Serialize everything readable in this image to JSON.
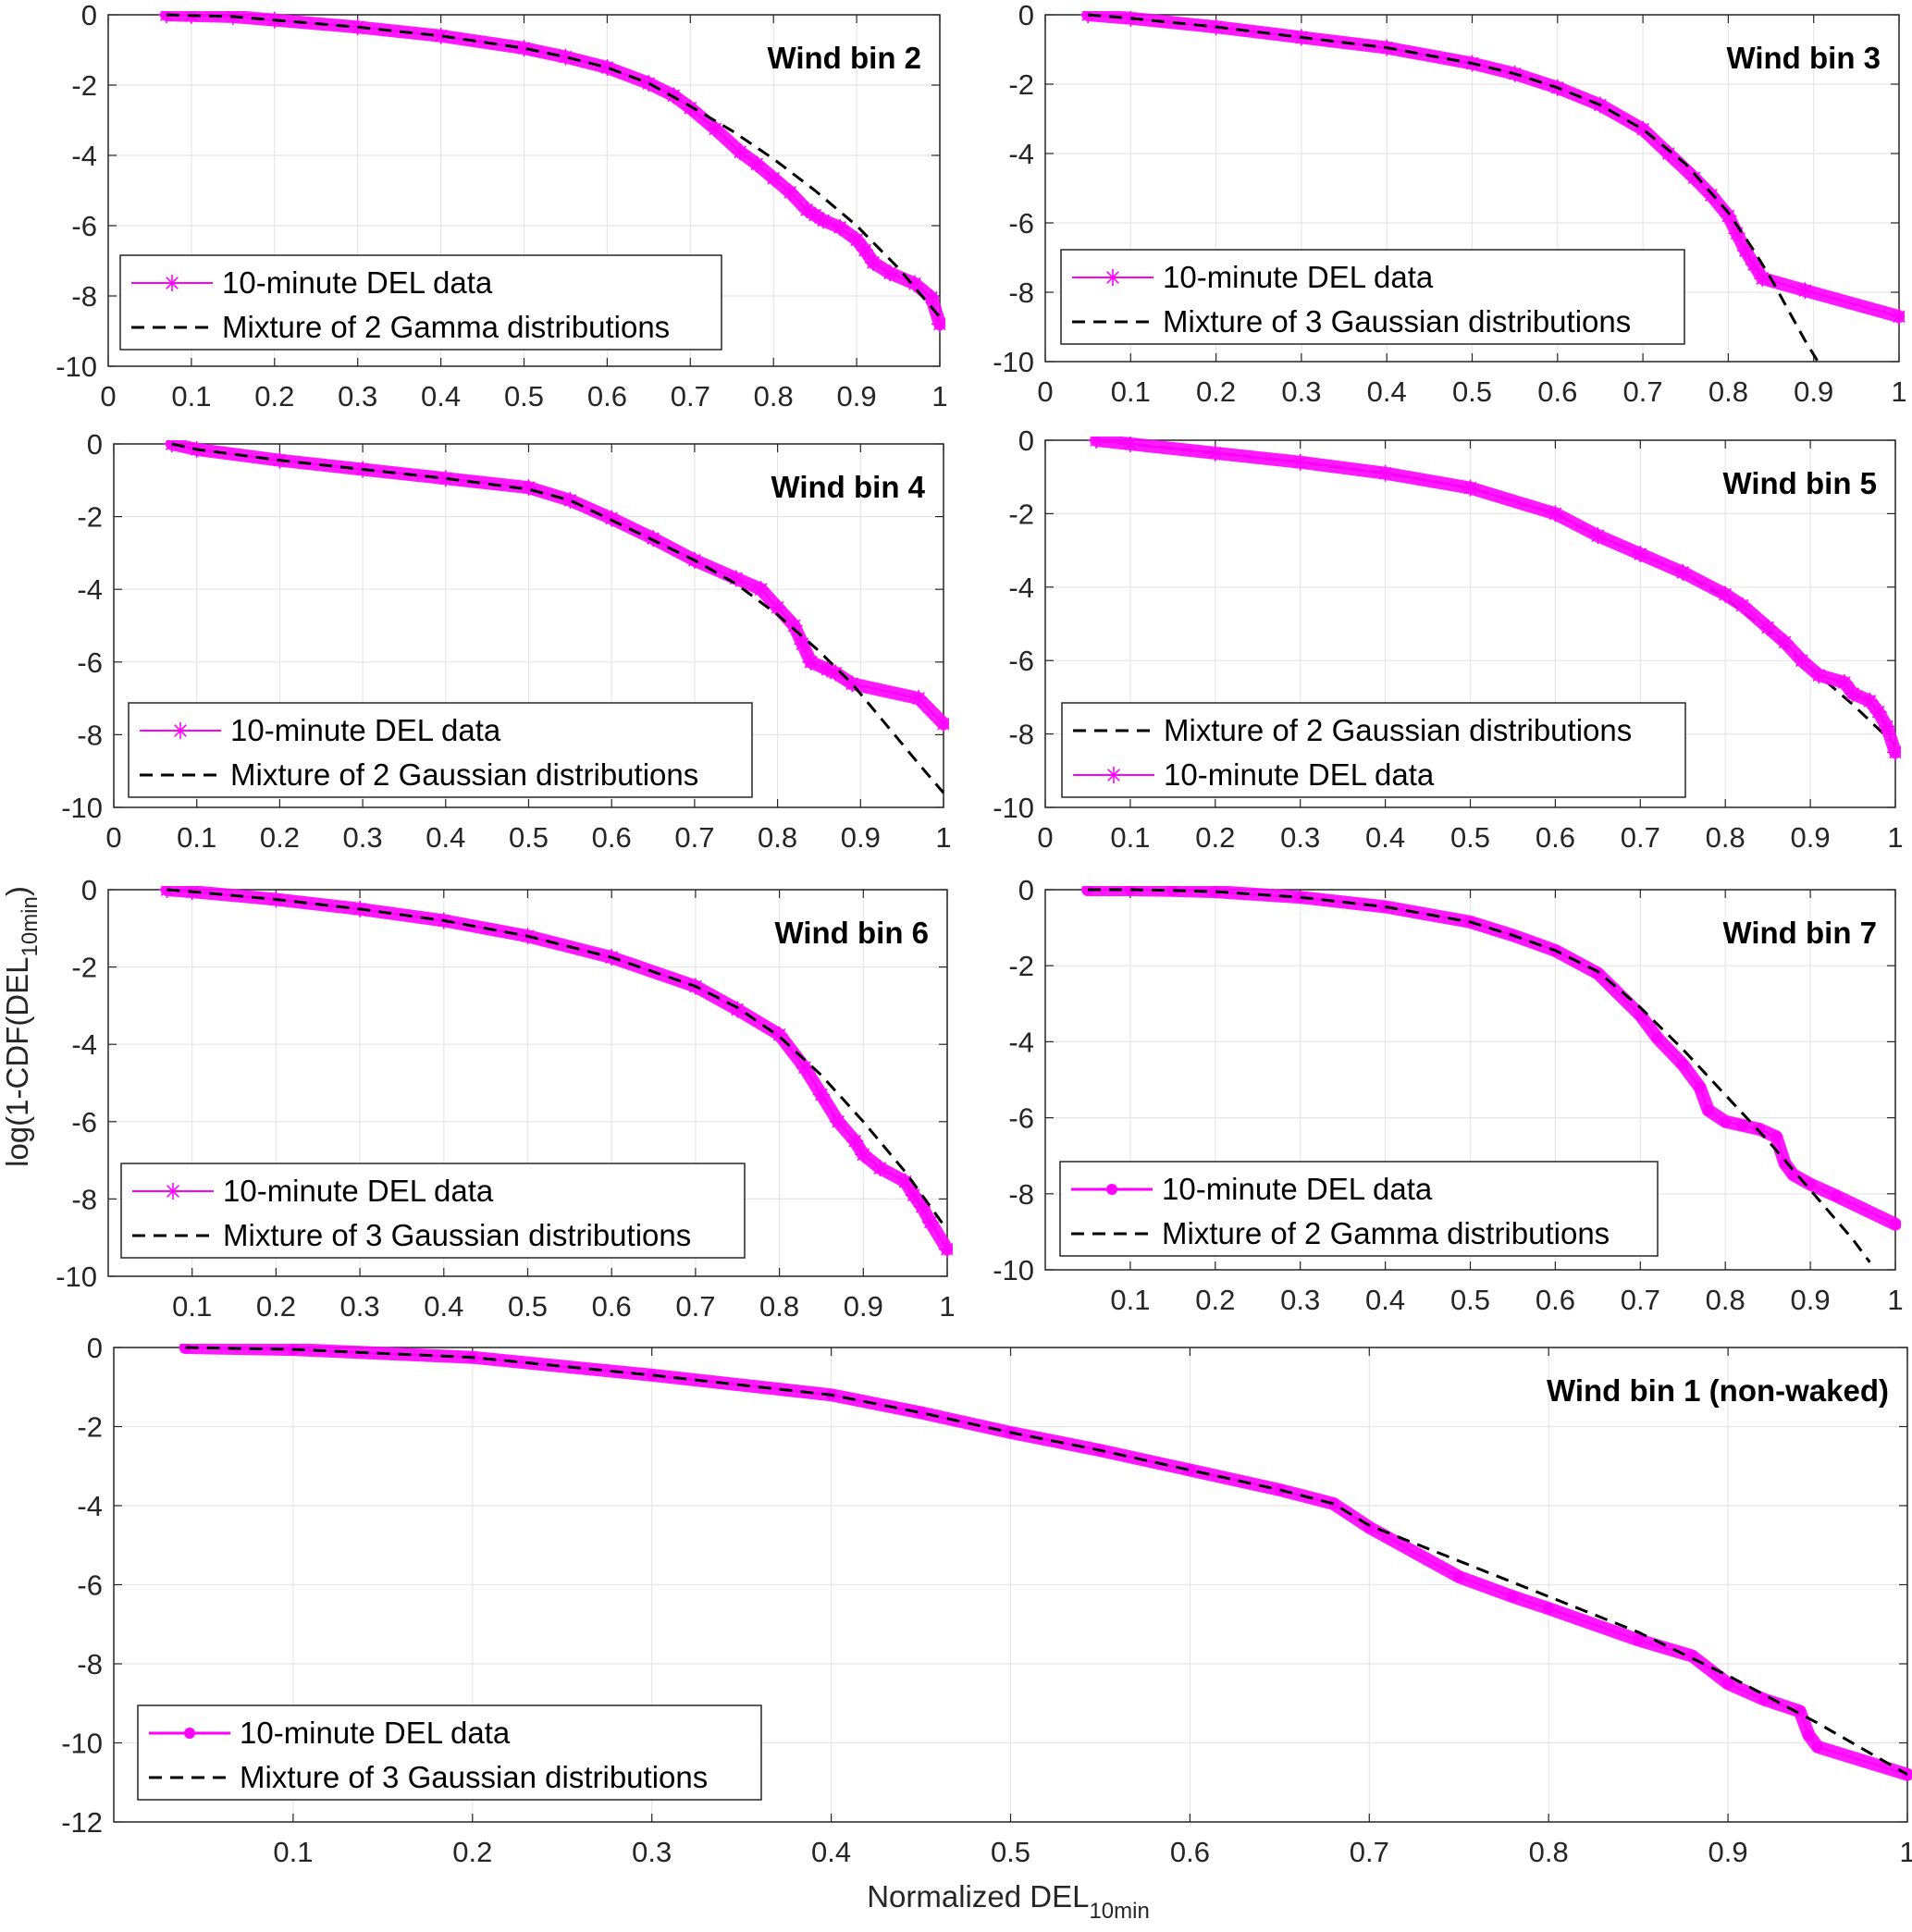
{
  "figure": {
    "ylabel_main": "log(1-CDF(DEL",
    "ylabel_sub": "10min",
    "ylabel_close": ")",
    "xlabel_main": "Normalized DEL",
    "xlabel_sub": "10min",
    "colors": {
      "data": "#FF00FF",
      "fit": "#000000",
      "grid": "#E6E6E6",
      "axis": "#262626"
    }
  },
  "chart_data": [
    {
      "id": "bin2",
      "type": "line",
      "title": "Wind bin 2",
      "xlim": [
        0,
        1
      ],
      "ylim": [
        -10,
        0
      ],
      "xticks": [
        0,
        0.1,
        0.2,
        0.3,
        0.4,
        0.5,
        0.6,
        0.7,
        0.8,
        0.9,
        1
      ],
      "xtick_labels": [
        "0",
        "0.1",
        "0.2",
        "0.3",
        "0.4",
        "0.5",
        "0.6",
        "0.7",
        "0.8",
        "0.9",
        "1"
      ],
      "yticks": [
        0,
        -2,
        -4,
        -6,
        -8,
        -10
      ],
      "ytick_labels": [
        "0",
        "-2",
        "-4",
        "-6",
        "-8",
        "-10"
      ],
      "grid": true,
      "legend_position": "bottom-left",
      "series": [
        {
          "name": "10-minute DEL data",
          "style": "data",
          "marker": "asterisk",
          "x": [
            0.07,
            0.1,
            0.15,
            0.2,
            0.3,
            0.4,
            0.5,
            0.55,
            0.6,
            0.65,
            0.68,
            0.7,
            0.73,
            0.76,
            0.78,
            0.8,
            0.82,
            0.84,
            0.85,
            0.86,
            0.88,
            0.9,
            0.91,
            0.92,
            0.94,
            0.97,
            0.99,
            1.0
          ],
          "y": [
            0,
            -0.02,
            -0.05,
            -0.15,
            -0.35,
            -0.6,
            -0.95,
            -1.2,
            -1.5,
            -1.95,
            -2.3,
            -2.65,
            -3.25,
            -3.9,
            -4.25,
            -4.65,
            -5.05,
            -5.55,
            -5.7,
            -5.85,
            -6.05,
            -6.4,
            -6.7,
            -7.05,
            -7.35,
            -7.65,
            -8.05,
            -8.8
          ]
        },
        {
          "name": "Mixture of 2 Gamma distributions",
          "style": "fit",
          "marker": "none",
          "x": [
            0.07,
            0.1,
            0.15,
            0.2,
            0.3,
            0.4,
            0.5,
            0.55,
            0.6,
            0.65,
            0.7,
            0.75,
            0.8,
            0.85,
            0.9,
            0.95,
            1.0
          ],
          "y": [
            0,
            -0.02,
            -0.05,
            -0.15,
            -0.35,
            -0.6,
            -0.95,
            -1.2,
            -1.5,
            -1.95,
            -2.6,
            -3.3,
            -4.1,
            -5.0,
            -6.0,
            -7.2,
            -8.6
          ]
        }
      ]
    },
    {
      "id": "bin3",
      "type": "line",
      "title": "Wind bin 3",
      "xlim": [
        0,
        1
      ],
      "ylim": [
        -10,
        0
      ],
      "xticks": [
        0,
        0.1,
        0.2,
        0.3,
        0.4,
        0.5,
        0.6,
        0.7,
        0.8,
        0.9,
        1
      ],
      "xtick_labels": [
        "0",
        "0.1",
        "0.2",
        "0.3",
        "0.4",
        "0.5",
        "0.6",
        "0.7",
        "0.8",
        "0.9",
        "1"
      ],
      "yticks": [
        0,
        -2,
        -4,
        -6,
        -8,
        -10
      ],
      "ytick_labels": [
        "0",
        "-2",
        "-4",
        "-6",
        "-8",
        "-10"
      ],
      "grid": true,
      "legend_position": "bottom-left",
      "series": [
        {
          "name": "10-minute DEL data",
          "style": "data",
          "marker": "asterisk",
          "x": [
            0.05,
            0.1,
            0.2,
            0.3,
            0.4,
            0.5,
            0.55,
            0.6,
            0.65,
            0.7,
            0.73,
            0.76,
            0.78,
            0.8,
            0.81,
            0.82,
            0.83,
            0.84,
            0.89,
            1.0
          ],
          "y": [
            0,
            -0.1,
            -0.35,
            -0.65,
            -0.95,
            -1.4,
            -1.7,
            -2.1,
            -2.6,
            -3.3,
            -4.0,
            -4.7,
            -5.2,
            -5.8,
            -6.3,
            -6.8,
            -7.2,
            -7.6,
            -7.95,
            -8.7
          ]
        },
        {
          "name": "Mixture of 3 Gaussian distributions",
          "style": "fit",
          "marker": "none",
          "x": [
            0.05,
            0.1,
            0.2,
            0.3,
            0.4,
            0.5,
            0.55,
            0.6,
            0.65,
            0.7,
            0.75,
            0.8,
            0.83,
            0.85,
            0.87,
            0.89,
            0.905
          ],
          "y": [
            0,
            -0.1,
            -0.35,
            -0.65,
            -0.95,
            -1.4,
            -1.7,
            -2.1,
            -2.6,
            -3.3,
            -4.3,
            -5.7,
            -6.8,
            -7.6,
            -8.5,
            -9.4,
            -10
          ]
        }
      ]
    },
    {
      "id": "bin4",
      "type": "line",
      "title": "Wind bin 4",
      "xlim": [
        0,
        1
      ],
      "ylim": [
        -10,
        0
      ],
      "xticks": [
        0,
        0.1,
        0.2,
        0.3,
        0.4,
        0.5,
        0.6,
        0.7,
        0.8,
        0.9,
        1
      ],
      "xtick_labels": [
        "0",
        "0.1",
        "0.2",
        "0.3",
        "0.4",
        "0.5",
        "0.6",
        "0.7",
        "0.8",
        "0.9",
        "1"
      ],
      "yticks": [
        0,
        -2,
        -4,
        -6,
        -8,
        -10
      ],
      "ytick_labels": [
        "0",
        "-2",
        "-4",
        "-6",
        "-8",
        "-10"
      ],
      "grid": true,
      "legend_position": "bottom-left",
      "series": [
        {
          "name": "10-minute DEL data",
          "style": "data",
          "marker": "asterisk",
          "x": [
            0.07,
            0.1,
            0.2,
            0.3,
            0.4,
            0.5,
            0.55,
            0.6,
            0.65,
            0.7,
            0.75,
            0.78,
            0.8,
            0.82,
            0.83,
            0.84,
            0.86,
            0.87,
            0.89,
            0.97,
            1.0
          ],
          "y": [
            0,
            -0.15,
            -0.45,
            -0.7,
            -0.95,
            -1.2,
            -1.55,
            -2.05,
            -2.6,
            -3.2,
            -3.7,
            -4.0,
            -4.5,
            -5.0,
            -5.5,
            -6.0,
            -6.2,
            -6.3,
            -6.6,
            -7.0,
            -7.7
          ]
        },
        {
          "name": "Mixture of 2 Gaussian distributions",
          "style": "fit",
          "marker": "none",
          "x": [
            0.07,
            0.1,
            0.2,
            0.3,
            0.4,
            0.5,
            0.55,
            0.6,
            0.65,
            0.7,
            0.75,
            0.8,
            0.85,
            0.89,
            0.93,
            0.97,
            1.0
          ],
          "y": [
            0,
            -0.15,
            -0.45,
            -0.7,
            -0.95,
            -1.25,
            -1.55,
            -2.1,
            -2.65,
            -3.2,
            -3.85,
            -4.7,
            -5.7,
            -6.6,
            -7.7,
            -8.8,
            -9.6
          ]
        }
      ]
    },
    {
      "id": "bin5",
      "type": "line",
      "title": "Wind bin 5",
      "xlim": [
        0,
        1
      ],
      "ylim": [
        -10,
        0
      ],
      "xticks": [
        0,
        0.1,
        0.2,
        0.3,
        0.4,
        0.5,
        0.6,
        0.7,
        0.8,
        0.9,
        1
      ],
      "xtick_labels": [
        "0",
        "0.1",
        "0.2",
        "0.3",
        "0.4",
        "0.5",
        "0.6",
        "0.7",
        "0.8",
        "0.9",
        "1"
      ],
      "yticks": [
        0,
        -2,
        -4,
        -6,
        -8,
        -10
      ],
      "ytick_labels": [
        "0",
        "-2",
        "-4",
        "-6",
        "-8",
        "-10"
      ],
      "grid": true,
      "legend_position": "bottom-left",
      "series": [
        {
          "name": "Mixture of 2 Gaussian distributions",
          "style": "fit",
          "marker": "none",
          "x": [
            0.06,
            0.1,
            0.2,
            0.3,
            0.4,
            0.5,
            0.6,
            0.65,
            0.7,
            0.75,
            0.8,
            0.85,
            0.9,
            0.95,
            1.0
          ],
          "y": [
            0,
            -0.1,
            -0.35,
            -0.6,
            -0.9,
            -1.3,
            -2.0,
            -2.6,
            -3.1,
            -3.6,
            -4.3,
            -5.2,
            -6.2,
            -7.2,
            -8.3
          ]
        },
        {
          "name": "10-minute DEL data",
          "style": "data",
          "marker": "asterisk",
          "x": [
            0.06,
            0.1,
            0.2,
            0.3,
            0.4,
            0.5,
            0.6,
            0.65,
            0.7,
            0.75,
            0.8,
            0.82,
            0.85,
            0.87,
            0.89,
            0.91,
            0.94,
            0.95,
            0.97,
            0.98,
            0.99,
            1.0
          ],
          "y": [
            0,
            -0.1,
            -0.35,
            -0.6,
            -0.9,
            -1.3,
            -2.0,
            -2.6,
            -3.1,
            -3.6,
            -4.2,
            -4.5,
            -5.1,
            -5.5,
            -6.0,
            -6.4,
            -6.6,
            -6.9,
            -7.1,
            -7.4,
            -7.8,
            -8.5
          ]
        }
      ]
    },
    {
      "id": "bin6",
      "type": "line",
      "title": "Wind bin 6",
      "xlim": [
        0,
        1
      ],
      "ylim": [
        -10,
        0
      ],
      "xticks": [
        0.1,
        0.2,
        0.3,
        0.4,
        0.5,
        0.6,
        0.7,
        0.8,
        0.9,
        1
      ],
      "xtick_labels": [
        "0.1",
        "0.2",
        "0.3",
        "0.4",
        "0.5",
        "0.6",
        "0.7",
        "0.8",
        "0.9",
        "1"
      ],
      "yticks": [
        0,
        -2,
        -4,
        -6,
        -8,
        -10
      ],
      "ytick_labels": [
        "0",
        "-2",
        "-4",
        "-6",
        "-8",
        "-10"
      ],
      "grid": true,
      "legend_position": "bottom-left",
      "series": [
        {
          "name": "10-minute DEL data",
          "style": "data",
          "marker": "asterisk",
          "x": [
            0.07,
            0.1,
            0.2,
            0.3,
            0.4,
            0.5,
            0.6,
            0.7,
            0.75,
            0.8,
            0.83,
            0.85,
            0.87,
            0.89,
            0.9,
            0.92,
            0.95,
            0.96,
            0.97,
            0.98,
            1.0
          ],
          "y": [
            0,
            -0.05,
            -0.25,
            -0.5,
            -0.8,
            -1.2,
            -1.75,
            -2.5,
            -3.1,
            -3.75,
            -4.6,
            -5.3,
            -6.0,
            -6.5,
            -6.85,
            -7.2,
            -7.55,
            -7.9,
            -8.2,
            -8.6,
            -9.3
          ]
        },
        {
          "name": "Mixture of 3 Gaussian distributions",
          "style": "fit",
          "marker": "none",
          "x": [
            0.07,
            0.1,
            0.2,
            0.3,
            0.4,
            0.5,
            0.6,
            0.7,
            0.75,
            0.8,
            0.85,
            0.9,
            0.95,
            1.0
          ],
          "y": [
            0,
            -0.05,
            -0.25,
            -0.5,
            -0.8,
            -1.2,
            -1.75,
            -2.5,
            -3.05,
            -3.8,
            -4.8,
            -6.0,
            -7.3,
            -8.8
          ]
        }
      ]
    },
    {
      "id": "bin7",
      "type": "line",
      "title": "Wind bin 7",
      "xlim": [
        0,
        1
      ],
      "ylim": [
        -10,
        0
      ],
      "xticks": [
        0.1,
        0.2,
        0.3,
        0.4,
        0.5,
        0.6,
        0.7,
        0.8,
        0.9,
        1
      ],
      "xtick_labels": [
        "0.1",
        "0.2",
        "0.3",
        "0.4",
        "0.5",
        "0.6",
        "0.7",
        "0.8",
        "0.9",
        "1"
      ],
      "yticks": [
        0,
        -2,
        -4,
        -6,
        -8,
        -10
      ],
      "ytick_labels": [
        "0",
        "-2",
        "-4",
        "-6",
        "-8",
        "-10"
      ],
      "grid": true,
      "legend_position": "bottom-left",
      "series": [
        {
          "name": "10-minute DEL data",
          "style": "data",
          "marker": "dot",
          "x": [
            0.05,
            0.1,
            0.15,
            0.2,
            0.3,
            0.4,
            0.5,
            0.55,
            0.6,
            0.65,
            0.7,
            0.72,
            0.75,
            0.77,
            0.78,
            0.8,
            0.82,
            0.84,
            0.86,
            0.87,
            0.88,
            0.9,
            0.93,
            1.0
          ],
          "y": [
            0,
            0,
            -0.02,
            -0.05,
            -0.2,
            -0.45,
            -0.85,
            -1.2,
            -1.6,
            -2.2,
            -3.3,
            -3.9,
            -4.6,
            -5.2,
            -5.8,
            -6.1,
            -6.2,
            -6.3,
            -6.5,
            -7.2,
            -7.5,
            -7.75,
            -8.05,
            -8.8
          ]
        },
        {
          "name": "Mixture of 2 Gamma distributions",
          "style": "fit",
          "marker": "none",
          "x": [
            0.05,
            0.1,
            0.15,
            0.2,
            0.3,
            0.4,
            0.5,
            0.55,
            0.6,
            0.65,
            0.7,
            0.75,
            0.8,
            0.85,
            0.9,
            0.95,
            0.97
          ],
          "y": [
            0,
            0,
            -0.02,
            -0.05,
            -0.2,
            -0.45,
            -0.85,
            -1.2,
            -1.6,
            -2.15,
            -3.1,
            -4.2,
            -5.4,
            -6.6,
            -7.9,
            -9.2,
            -9.8
          ]
        }
      ]
    },
    {
      "id": "bin1",
      "type": "line",
      "title": "Wind bin 1 (non-waked)",
      "xlim": [
        0,
        1
      ],
      "ylim": [
        -12,
        0
      ],
      "xticks": [
        0.1,
        0.2,
        0.3,
        0.4,
        0.5,
        0.6,
        0.7,
        0.8,
        0.9,
        1
      ],
      "xtick_labels": [
        "0.1",
        "0.2",
        "0.3",
        "0.4",
        "0.5",
        "0.6",
        "0.7",
        "0.8",
        "0.9",
        "1"
      ],
      "yticks": [
        0,
        -2,
        -4,
        -6,
        -8,
        -10,
        -12
      ],
      "ytick_labels": [
        "0",
        "-2",
        "-4",
        "-6",
        "-8",
        "-10",
        "-12"
      ],
      "grid": true,
      "legend_position": "bottom-left",
      "series": [
        {
          "name": "10-minute DEL data",
          "style": "data",
          "marker": "dot",
          "x": [
            0.04,
            0.1,
            0.2,
            0.3,
            0.4,
            0.45,
            0.5,
            0.55,
            0.6,
            0.65,
            0.68,
            0.7,
            0.75,
            0.78,
            0.8,
            0.85,
            0.88,
            0.9,
            0.92,
            0.94,
            0.945,
            0.95,
            1.0
          ],
          "y": [
            0,
            -0.05,
            -0.25,
            -0.7,
            -1.2,
            -1.65,
            -2.15,
            -2.6,
            -3.1,
            -3.6,
            -3.95,
            -4.55,
            -5.8,
            -6.3,
            -6.6,
            -7.4,
            -7.8,
            -8.5,
            -8.9,
            -9.2,
            -9.8,
            -10.1,
            -10.8
          ]
        },
        {
          "name": "Mixture of 3 Gaussian distributions",
          "style": "fit",
          "marker": "none",
          "x": [
            0.04,
            0.1,
            0.2,
            0.3,
            0.4,
            0.45,
            0.5,
            0.55,
            0.6,
            0.65,
            0.68,
            0.7,
            0.75,
            0.8,
            0.85,
            0.9,
            0.95,
            1.0
          ],
          "y": [
            0,
            -0.05,
            -0.25,
            -0.7,
            -1.2,
            -1.65,
            -2.15,
            -2.6,
            -3.1,
            -3.6,
            -3.95,
            -4.5,
            -5.4,
            -6.3,
            -7.2,
            -8.3,
            -9.5,
            -10.8
          ]
        }
      ]
    }
  ]
}
